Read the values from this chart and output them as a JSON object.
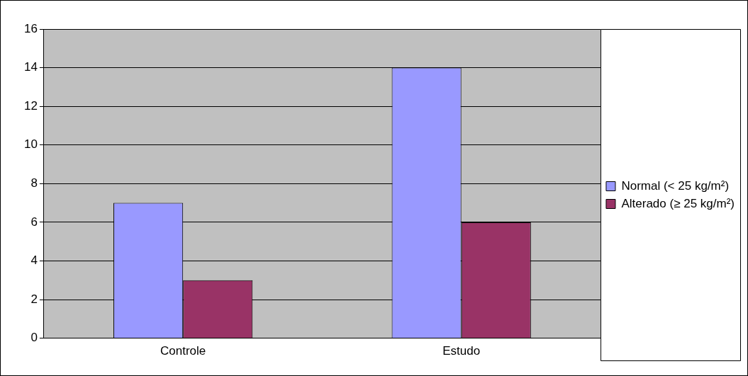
{
  "chart_data": {
    "type": "bar",
    "categories": [
      "Controle",
      "Estudo"
    ],
    "series": [
      {
        "name": "Normal (< 25 kg/m²)",
        "color": "#9999ff",
        "values": [
          7,
          14
        ]
      },
      {
        "name": "Alterado (≥ 25 kg/m²)",
        "color": "#993366",
        "values": [
          3,
          6
        ]
      }
    ],
    "ylim": [
      0,
      16
    ],
    "yticks": [
      0,
      2,
      4,
      6,
      8,
      10,
      12,
      14,
      16
    ],
    "grid": "y",
    "legend": "right"
  }
}
